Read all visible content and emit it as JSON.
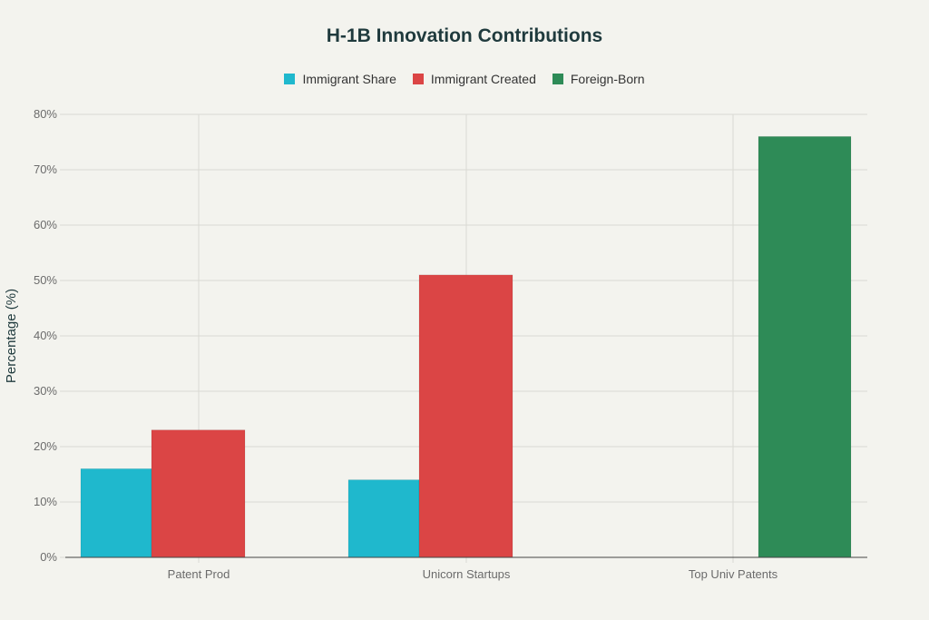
{
  "chart_data": {
    "type": "bar",
    "title": "H-1B Innovation Contributions",
    "xlabel": "",
    "ylabel": "Percentage (%)",
    "ylim": [
      0,
      80
    ],
    "yticks": [
      "0%",
      "10%",
      "20%",
      "30%",
      "40%",
      "50%",
      "60%",
      "70%",
      "80%"
    ],
    "grid": true,
    "legend_position": "top",
    "categories": [
      "Patent Prod",
      "Unicorn Startups",
      "Top Univ Patents"
    ],
    "series": [
      {
        "name": "Immigrant Share",
        "color": "#1FB8CD",
        "values": [
          16,
          14,
          null
        ]
      },
      {
        "name": "Immigrant Created",
        "color": "#DB4545",
        "values": [
          23,
          51,
          null
        ]
      },
      {
        "name": "Foreign-Born",
        "color": "#2E8B57",
        "values": [
          null,
          null,
          76
        ]
      }
    ]
  }
}
